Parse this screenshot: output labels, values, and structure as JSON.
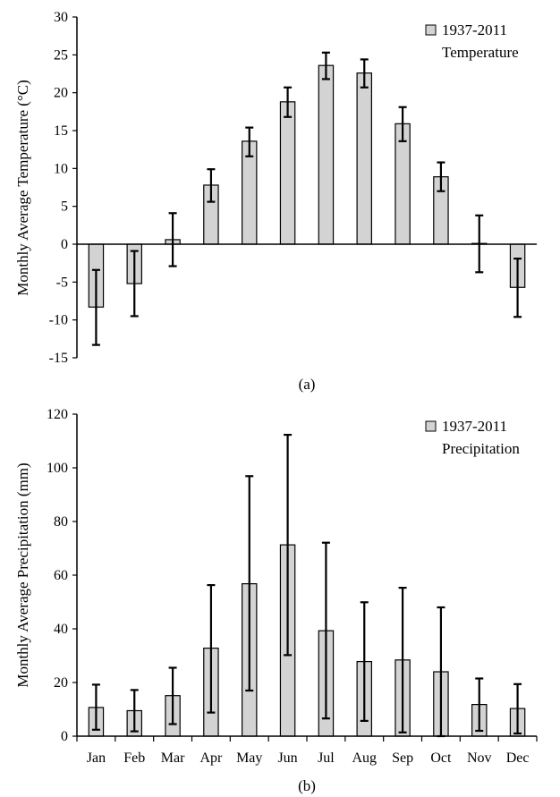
{
  "figure": {
    "bar_fill": "#d3d3d3",
    "bar_stroke": "#000000",
    "error_bar_color": "#000000"
  },
  "chart_data": [
    {
      "type": "bar",
      "caption": "(a)",
      "ylabel": "Monthly Average Temperature (°C)",
      "ylim": [
        -15,
        30
      ],
      "yticks": [
        -15,
        -10,
        -5,
        0,
        5,
        10,
        15,
        20,
        25,
        30
      ],
      "categories": [
        "Jan",
        "Feb",
        "Mar",
        "Apr",
        "May",
        "Jun",
        "Jul",
        "Aug",
        "Sep",
        "Oct",
        "Nov",
        "Dec"
      ],
      "show_category_labels": false,
      "legend": {
        "line1": "1937-2011",
        "line2": "Temperature",
        "placement": "top-right"
      },
      "series": [
        {
          "values": [
            -8.3,
            -5.2,
            0.6,
            7.8,
            13.6,
            18.8,
            23.6,
            22.6,
            15.9,
            8.9,
            0.1,
            -5.7
          ],
          "error_low": [
            -13.3,
            -9.5,
            -2.9,
            5.6,
            11.6,
            16.8,
            21.8,
            20.7,
            13.6,
            7.0,
            -3.7,
            -9.6
          ],
          "error_high": [
            -3.4,
            -0.9,
            4.1,
            9.9,
            15.4,
            20.7,
            25.3,
            24.4,
            18.1,
            10.8,
            3.8,
            -1.9
          ]
        }
      ]
    },
    {
      "type": "bar",
      "caption": "(b)",
      "ylabel": "Monthly Average Precipitation (mm)",
      "ylim": [
        0,
        120
      ],
      "yticks": [
        0,
        20,
        40,
        60,
        80,
        100,
        120
      ],
      "categories": [
        "Jan",
        "Feb",
        "Mar",
        "Apr",
        "May",
        "Jun",
        "Jul",
        "Aug",
        "Sep",
        "Oct",
        "Nov",
        "Dec"
      ],
      "show_category_labels": true,
      "legend": {
        "line1": "1937-2011",
        "line2": "Precipitation",
        "placement": "top-right"
      },
      "series": [
        {
          "values": [
            10.7,
            9.5,
            15.1,
            32.8,
            56.8,
            71.3,
            39.3,
            27.8,
            28.4,
            24.0,
            11.8,
            10.3
          ],
          "error_low": [
            2.4,
            1.8,
            4.5,
            8.8,
            17.0,
            30.2,
            6.6,
            5.7,
            1.4,
            0.0,
            2.0,
            1.0
          ],
          "error_high": [
            19.2,
            17.2,
            25.5,
            56.3,
            96.9,
            112.3,
            72.1,
            49.9,
            55.3,
            48.0,
            21.5,
            19.4
          ]
        }
      ]
    }
  ]
}
